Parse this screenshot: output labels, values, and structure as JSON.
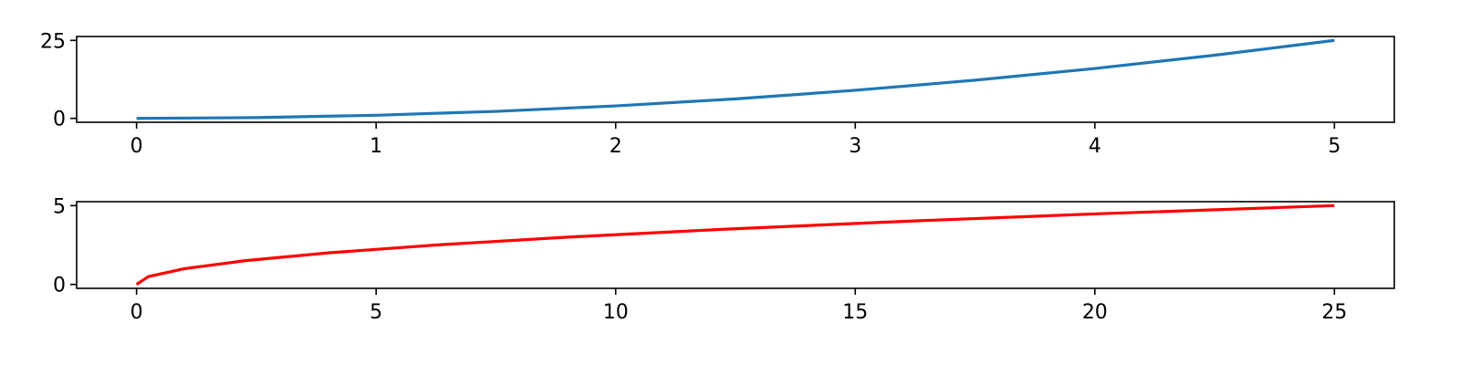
{
  "chart_data": [
    {
      "type": "line",
      "title": "",
      "xlabel": "",
      "ylabel": "",
      "xlim": [
        -0.25,
        5.25
      ],
      "ylim": [
        -1.25,
        26.25
      ],
      "grid": false,
      "xticks": [
        0,
        1,
        2,
        3,
        4,
        5
      ],
      "xtick_labels": [
        "0",
        "1",
        "2",
        "3",
        "4",
        "5"
      ],
      "yticks": [
        0,
        25
      ],
      "ytick_labels": [
        "0",
        "25"
      ],
      "series": [
        {
          "color": "#1f77b4",
          "x": [
            0,
            0.5,
            1,
            1.5,
            2,
            2.5,
            3,
            3.5,
            4,
            4.5,
            5
          ],
          "y": [
            0,
            0.25,
            1,
            2.25,
            4,
            6.25,
            9,
            12.25,
            16,
            20.25,
            25
          ]
        }
      ]
    },
    {
      "type": "line",
      "title": "",
      "xlabel": "",
      "ylabel": "",
      "xlim": [
        -1.25,
        26.25
      ],
      "ylim": [
        -0.25,
        5.25
      ],
      "grid": false,
      "xticks": [
        0,
        5,
        10,
        15,
        20,
        25
      ],
      "xtick_labels": [
        "0",
        "5",
        "10",
        "15",
        "20",
        "25"
      ],
      "yticks": [
        0,
        5
      ],
      "ytick_labels": [
        "0",
        "5"
      ],
      "series": [
        {
          "color": "#ff0000",
          "x": [
            0,
            0.25,
            1,
            2.25,
            4,
            6.25,
            9,
            12.25,
            16,
            20.25,
            25
          ],
          "y": [
            0,
            0.5,
            1,
            1.5,
            2,
            2.5,
            3,
            3.5,
            4,
            4.5,
            5
          ]
        }
      ]
    }
  ]
}
